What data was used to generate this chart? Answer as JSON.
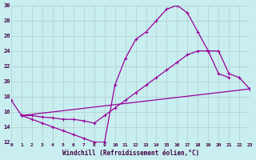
{
  "xlabel": "Windchill (Refroidissement éolien,°C)",
  "bg_color": "#c8eef0",
  "grid_color": "#b0cccc",
  "line_color": "#990099",
  "xlim": [
    0,
    23
  ],
  "ylim": [
    12,
    30
  ],
  "xticks": [
    0,
    1,
    2,
    3,
    4,
    5,
    6,
    7,
    8,
    9,
    10,
    11,
    12,
    13,
    14,
    15,
    16,
    17,
    18,
    19,
    20,
    21,
    22,
    23
  ],
  "yticks": [
    12,
    14,
    16,
    18,
    20,
    22,
    24,
    26,
    28,
    30
  ],
  "curve1_x": [
    0,
    1,
    2,
    3,
    4,
    5,
    6,
    7,
    8,
    9,
    10,
    11,
    12,
    13,
    14,
    15,
    16,
    17,
    18,
    19,
    20,
    21
  ],
  "curve1_y": [
    17.5,
    15.5,
    15.0,
    14.5,
    14.0,
    13.5,
    13.0,
    12.5,
    12.0,
    12.0,
    19.5,
    23.0,
    25.5,
    26.5,
    28.0,
    29.5,
    30.0,
    29.0,
    26.5,
    24.0,
    21.0,
    20.5
  ],
  "curve2_x": [
    1,
    23
  ],
  "curve2_y": [
    15.5,
    19.0
  ],
  "curve3_x": [
    1,
    2,
    3,
    4,
    5,
    6,
    7,
    8,
    9,
    10,
    11,
    12,
    13,
    14,
    15,
    16,
    17,
    18,
    19,
    20,
    21,
    22,
    23
  ],
  "curve3_y": [
    15.5,
    15.5,
    15.3,
    15.2,
    15.0,
    15.0,
    14.8,
    14.5,
    15.5,
    16.5,
    17.5,
    18.5,
    19.5,
    20.5,
    21.5,
    22.5,
    23.5,
    24.0,
    24.0,
    24.0,
    21.0,
    20.5,
    19.0
  ]
}
